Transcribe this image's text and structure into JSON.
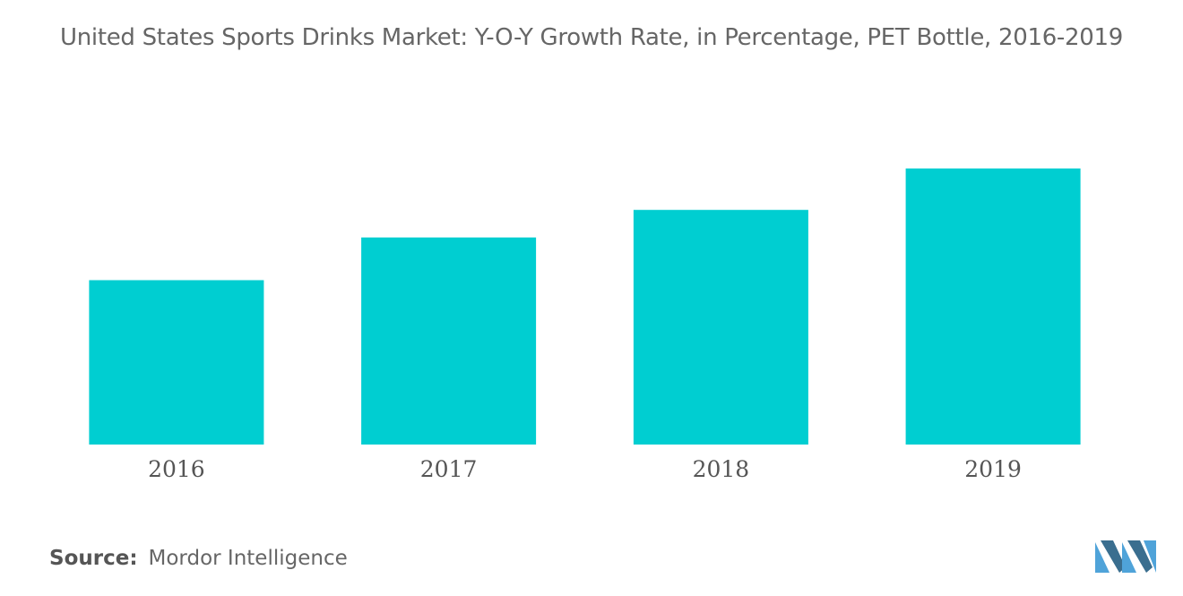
{
  "title": "United States Sports Drinks Market: Y-O-Y Growth Rate, in Percentage, PET Bottle, 2016-2019",
  "source": {
    "label": "Source:",
    "value": "Mordor Intelligence"
  },
  "colors": {
    "bar": "#00CED1",
    "title": "#666666",
    "tick": "#555555",
    "logo_light": "#4FA3D9",
    "logo_dark": "#3A6E8F"
  },
  "logo_icon": "mordor-intelligence-logo",
  "chart_data": {
    "type": "bar",
    "title": "United States Sports Drinks Market: Y-O-Y Growth Rate, in Percentage, PET Bottle, 2016-2019",
    "categories": [
      "2016",
      "2017",
      "2018",
      "2019"
    ],
    "values": [
      131,
      165,
      187,
      220
    ],
    "xlabel": "",
    "ylabel": "",
    "ylim": [
      0,
      300
    ],
    "grid": false,
    "legend": "none"
  }
}
